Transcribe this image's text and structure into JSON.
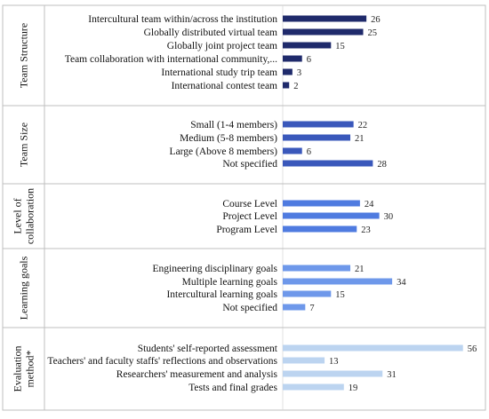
{
  "chart_data": {
    "type": "bar",
    "orientation": "horizontal",
    "title": "",
    "xlabel": "",
    "ylabel": "",
    "grid": false,
    "legend": "none",
    "footnote_marker": "*",
    "groups": [
      {
        "name": "Team Structure",
        "color": "#1f2a6b",
        "categories": [
          "Intercultural team within/across the institution",
          "Globally distributed virtual team",
          "Globally joint project team",
          "Team collaboration with international community,...",
          "International study trip team",
          "International contest team"
        ],
        "values": [
          26,
          25,
          15,
          6,
          3,
          2
        ]
      },
      {
        "name": "Team Size",
        "color": "#3a58bb",
        "categories": [
          "Small (1-4 members)",
          "Medium (5-8 members)",
          "Large (Above 8 members)",
          "Not specified"
        ],
        "values": [
          22,
          21,
          6,
          28
        ]
      },
      {
        "name": "Level of collaboration",
        "color": "#4f7be0",
        "categories": [
          "Course Level",
          "Project Level",
          "Program Level"
        ],
        "values": [
          24,
          30,
          23
        ]
      },
      {
        "name": "Learning goals",
        "color": "#6e98ea",
        "categories": [
          "Engineering disciplinary goals",
          "Multiple learning goals",
          "Intercultural learning goals",
          "Not specified"
        ],
        "values": [
          21,
          34,
          15,
          7
        ]
      },
      {
        "name": "Evaluation method*",
        "color": "#bcd4f0",
        "categories": [
          "Students' self-reported assessment",
          "Teachers' and faculty staffs' reflections and observations",
          "Researchers' measurement and analysis",
          "Tests and final grades"
        ],
        "values": [
          56,
          13,
          31,
          19
        ]
      }
    ]
  }
}
